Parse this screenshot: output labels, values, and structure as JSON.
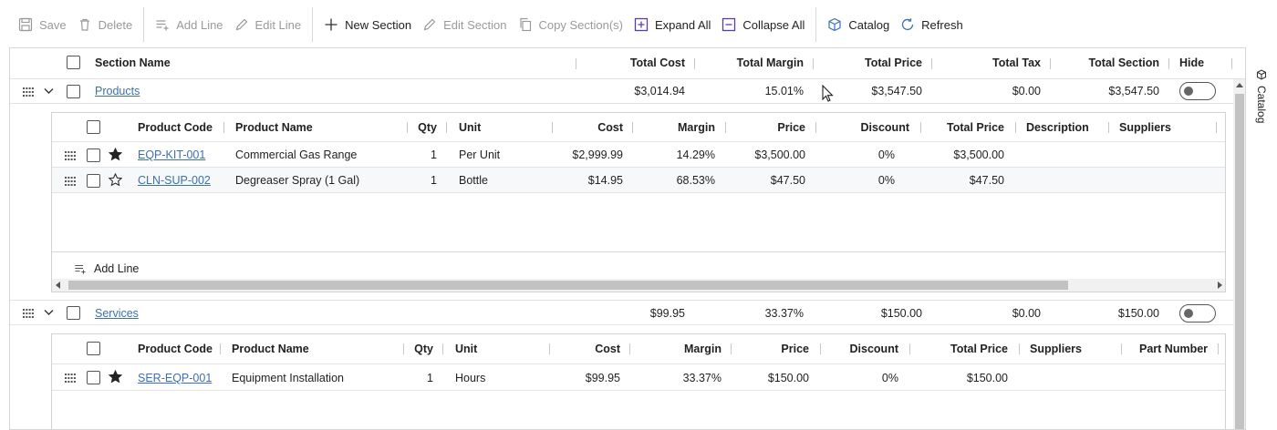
{
  "toolbar": {
    "save": "Save",
    "delete": "Delete",
    "add_line": "Add Line",
    "edit_line": "Edit Line",
    "new_section": "New Section",
    "edit_section": "Edit Section",
    "copy_sections": "Copy Section(s)",
    "expand_all": "Expand All",
    "collapse_all": "Collapse All",
    "catalog": "Catalog",
    "refresh": "Refresh"
  },
  "side_panel": {
    "catalog": "Catalog"
  },
  "sections_header": {
    "section_name": "Section Name",
    "total_cost": "Total Cost",
    "total_margin": "Total Margin",
    "total_price": "Total Price",
    "total_tax": "Total Tax",
    "total_section": "Total Section",
    "hide": "Hide"
  },
  "sections": [
    {
      "name": "Products",
      "total_cost": "$3,014.94",
      "total_margin": "15.01%",
      "total_price": "$3,547.50",
      "total_tax": "$0.00",
      "total_section": "$3,547.50",
      "hide": false,
      "lines_header": {
        "product_code": "Product Code",
        "product_name": "Product Name",
        "qty": "Qty",
        "unit": "Unit",
        "cost": "Cost",
        "margin": "Margin",
        "price": "Price",
        "discount": "Discount",
        "total_price": "Total Price",
        "description": "Description",
        "suppliers": "Suppliers"
      },
      "lines": [
        {
          "starred": true,
          "product_code": "EQP-KIT-001",
          "product_name": "Commercial Gas Range",
          "qty": "1",
          "unit": "Per Unit",
          "cost": "$2,999.99",
          "margin": "14.29%",
          "price": "$3,500.00",
          "discount": "0%",
          "total_price": "$3,500.00"
        },
        {
          "starred": false,
          "product_code": "CLN-SUP-002",
          "product_name": "Degreaser Spray (1 Gal)",
          "qty": "1",
          "unit": "Bottle",
          "cost": "$14.95",
          "margin": "68.53%",
          "price": "$47.50",
          "discount": "0%",
          "total_price": "$47.50"
        }
      ],
      "add_line": "Add Line"
    },
    {
      "name": "Services",
      "total_cost": "$99.95",
      "total_margin": "33.37%",
      "total_price": "$150.00",
      "total_tax": "$0.00",
      "total_section": "$150.00",
      "hide": false,
      "lines_header": {
        "product_code": "Product Code",
        "product_name": "Product Name",
        "qty": "Qty",
        "unit": "Unit",
        "cost": "Cost",
        "margin": "Margin",
        "price": "Price",
        "discount": "Discount",
        "total_price": "Total Price",
        "suppliers": "Suppliers",
        "part_number": "Part Number"
      },
      "lines": [
        {
          "starred": true,
          "product_code": "SER-EQP-001",
          "product_name": "Equipment Installation",
          "qty": "1",
          "unit": "Hours",
          "cost": "$99.95",
          "margin": "33.37%",
          "price": "$150.00",
          "discount": "0%",
          "total_price": "$150.00"
        }
      ]
    }
  ],
  "colors": {
    "link": "#3b6fb6",
    "disabled": "#9a9a9a",
    "accent": "#5b3fa0"
  },
  "icons": [
    "save-icon",
    "delete-icon",
    "add-line-icon",
    "edit-icon",
    "plus-icon",
    "copy-icon",
    "expand-icon",
    "collapse-icon",
    "catalog-box-icon",
    "refresh-icon",
    "drag-grip-icon",
    "chevron-down-icon",
    "star-icon",
    "mouse-cursor-icon"
  ]
}
